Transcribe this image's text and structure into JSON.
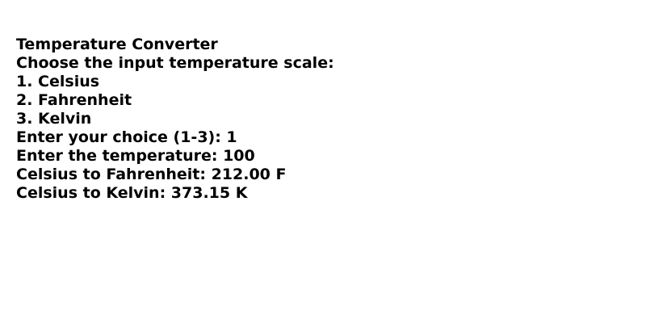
{
  "console": {
    "lines": [
      "Temperature Converter",
      "Choose the input temperature scale:",
      "1. Celsius",
      "2. Fahrenheit",
      "3. Kelvin",
      "Enter your choice (1-3): 1",
      "Enter the temperature: 100",
      "Celsius to Fahrenheit: 212.00 F",
      "Celsius to Kelvin: 373.15 K"
    ]
  }
}
